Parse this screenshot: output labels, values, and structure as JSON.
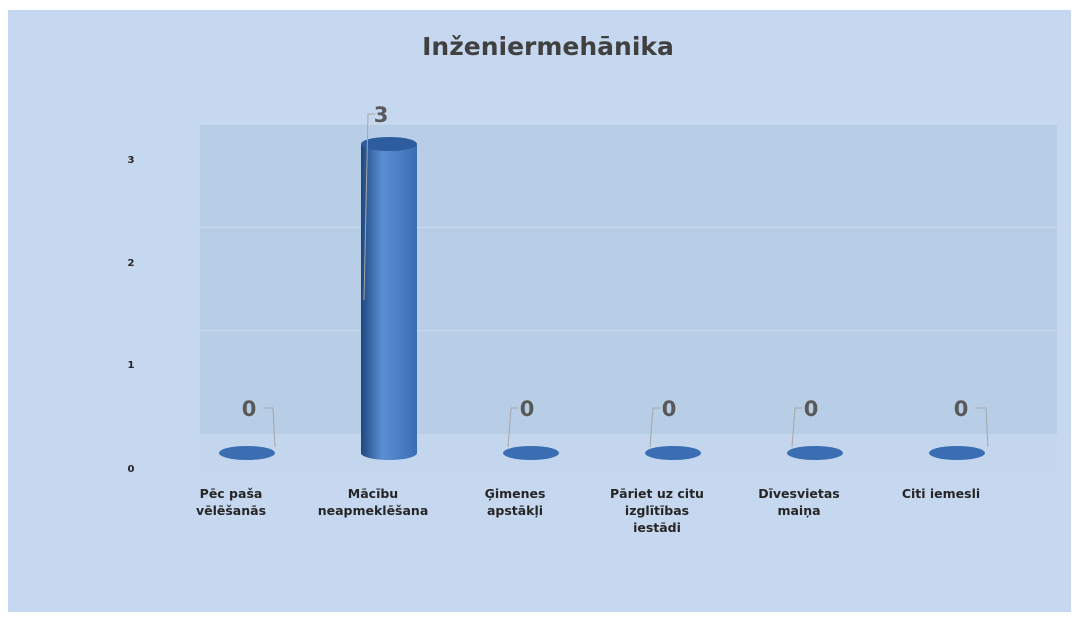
{
  "chart_data": {
    "type": "bar",
    "title": "Inženiermehānika",
    "categories": [
      [
        "Pēc paša",
        "vēlēšanās"
      ],
      [
        "Mācību",
        "neapmeklēšana"
      ],
      [
        "Ģimenes",
        "apstākļi"
      ],
      [
        "Pāriet uz citu",
        "izglītības",
        "iestādi"
      ],
      [
        "Dīvesvietas",
        "maiņa"
      ],
      [
        "Citi iemesli"
      ]
    ],
    "values": [
      0,
      3,
      0,
      0,
      0,
      0
    ],
    "data_labels": [
      "0",
      "3",
      "0",
      "0",
      "0",
      "0"
    ],
    "yticks": [
      "0",
      "1",
      "2",
      "3"
    ],
    "ylim": [
      0,
      3
    ],
    "grid": true,
    "legend": "none",
    "colors": {
      "chart_background": "#c6d8ef",
      "plot_wall": "#b8cde6",
      "plot_floor": "#c3d6ee",
      "bar_light": "#5b8fd3",
      "bar_mid": "#3a6db2",
      "bar_dark": "#1f477f",
      "bar_top": "#2d5c9f",
      "gridline": "#cfdcee",
      "leader_line": "#a6a6a6"
    }
  }
}
